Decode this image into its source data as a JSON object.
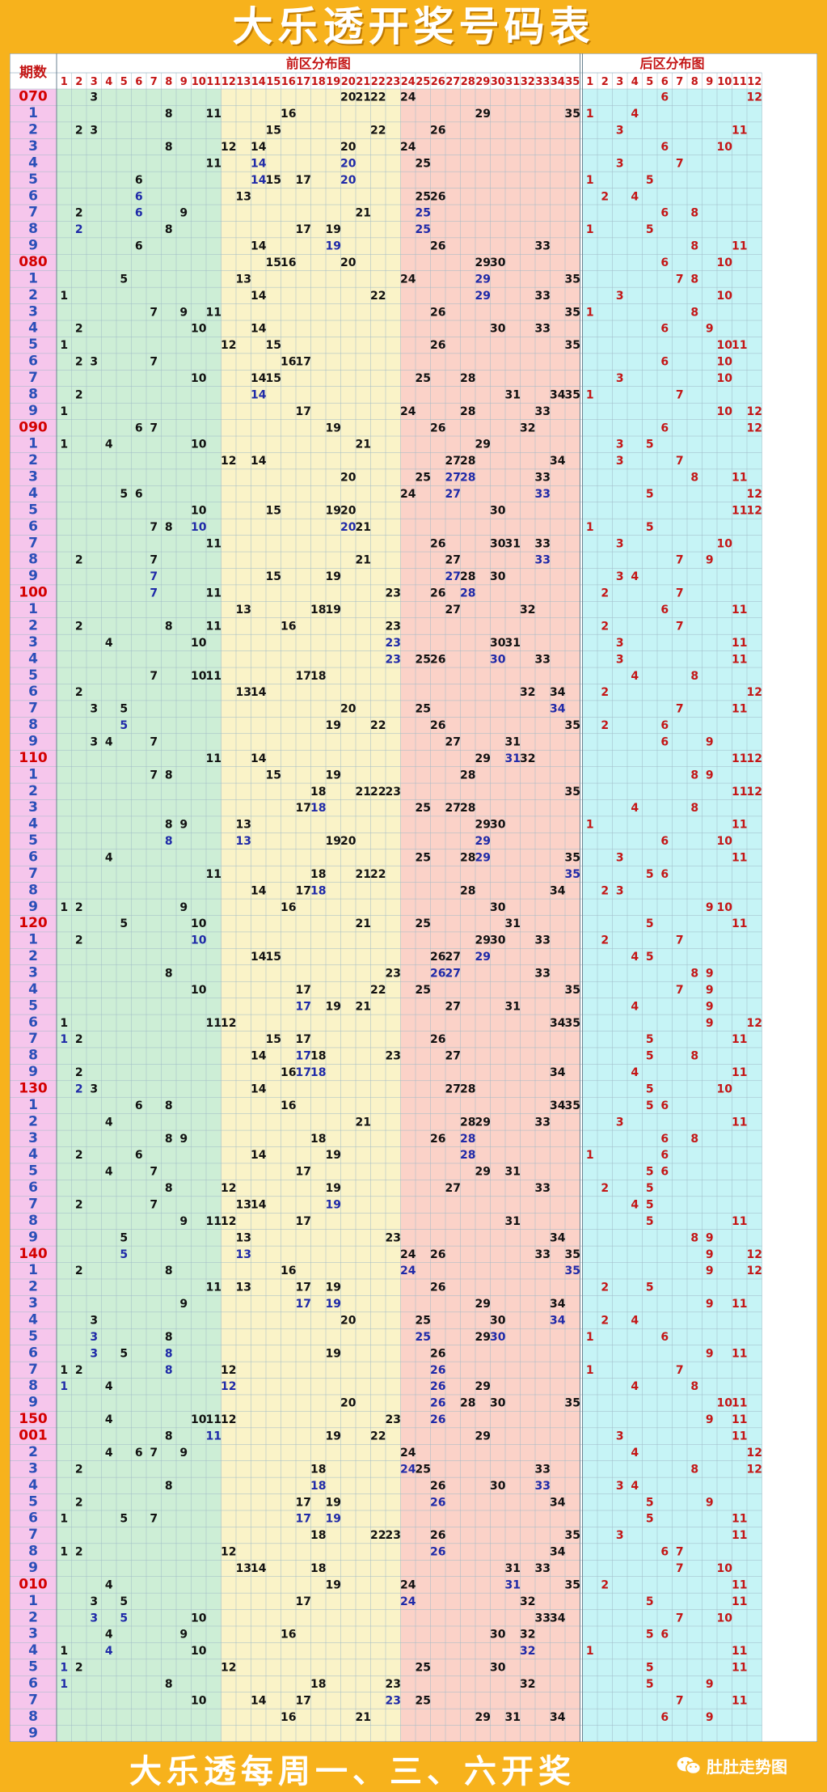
{
  "title": "大乐透开奖号码表",
  "footer": "大乐透每周一、三、六开奖",
  "watermark": "肚肚走势图",
  "chart_data": {
    "type": "table",
    "header": {
      "period": "期数",
      "front": "前区分布图",
      "back": "后区分布图"
    },
    "front_numbers": 35,
    "back_numbers": 12,
    "rows": [
      {
        "p": "070",
        "f": [
          3,
          20,
          21,
          22,
          24
        ],
        "b": [
          6,
          12
        ],
        "pc": "red"
      },
      {
        "p": "1",
        "f": [
          8,
          11,
          16,
          29,
          35
        ],
        "b": [
          1,
          4
        ]
      },
      {
        "p": "2",
        "f": [
          2,
          3,
          15,
          22,
          26
        ],
        "b": [
          3,
          11
        ]
      },
      {
        "p": "3",
        "f": [
          8,
          12,
          14,
          20,
          24
        ],
        "b": [
          6,
          10
        ]
      },
      {
        "p": "4",
        "f": [
          11,
          14,
          20,
          25
        ],
        "b": [
          3,
          7
        ]
      },
      {
        "p": "5",
        "f": [
          6,
          14,
          15,
          17,
          20
        ],
        "b": [
          1,
          5
        ]
      },
      {
        "p": "6",
        "f": [
          6,
          13,
          25,
          26
        ],
        "b": [
          2,
          4
        ]
      },
      {
        "p": "7",
        "f": [
          2,
          6,
          9,
          21,
          25
        ],
        "b": [
          6,
          8
        ]
      },
      {
        "p": "8",
        "f": [
          2,
          8,
          17,
          19,
          25
        ],
        "b": [
          1,
          5
        ]
      },
      {
        "p": "9",
        "f": [
          6,
          14,
          19,
          26,
          33
        ],
        "b": [
          8,
          11
        ]
      },
      {
        "p": "080",
        "f": [
          15,
          16,
          20,
          29,
          30
        ],
        "b": [
          6,
          10
        ],
        "pc": "red"
      },
      {
        "p": "1",
        "f": [
          5,
          13,
          24,
          29,
          35
        ],
        "b": [
          7,
          8
        ]
      },
      {
        "p": "2",
        "f": [
          1,
          14,
          22,
          29,
          33
        ],
        "b": [
          3,
          10
        ]
      },
      {
        "p": "3",
        "f": [
          7,
          9,
          11,
          26,
          35
        ],
        "b": [
          1,
          8
        ]
      },
      {
        "p": "4",
        "f": [
          2,
          10,
          14,
          30,
          33
        ],
        "b": [
          6,
          9
        ]
      },
      {
        "p": "5",
        "f": [
          1,
          12,
          15,
          26,
          35
        ],
        "b": [
          10,
          11
        ]
      },
      {
        "p": "6",
        "f": [
          2,
          3,
          7,
          16,
          17
        ],
        "b": [
          6,
          10
        ]
      },
      {
        "p": "7",
        "f": [
          10,
          14,
          15,
          25,
          28
        ],
        "b": [
          3,
          10
        ]
      },
      {
        "p": "8",
        "f": [
          2,
          14,
          31,
          34,
          35
        ],
        "b": [
          1,
          7
        ]
      },
      {
        "p": "9",
        "f": [
          1,
          17,
          24,
          28,
          33
        ],
        "b": [
          10,
          12
        ]
      },
      {
        "p": "090",
        "f": [
          6,
          7,
          19,
          26,
          32
        ],
        "b": [
          6,
          12
        ],
        "pc": "red"
      },
      {
        "p": "1",
        "f": [
          1,
          4,
          10,
          21,
          29
        ],
        "b": [
          3,
          5
        ]
      },
      {
        "p": "2",
        "f": [
          12,
          14,
          27,
          28,
          34
        ],
        "b": [
          3,
          7
        ]
      },
      {
        "p": "3",
        "f": [
          20,
          25,
          27,
          28,
          33
        ],
        "b": [
          8,
          11
        ]
      },
      {
        "p": "4",
        "f": [
          5,
          6,
          24,
          27,
          33
        ],
        "b": [
          5,
          12
        ]
      },
      {
        "p": "5",
        "f": [
          10,
          15,
          19,
          20,
          30
        ],
        "b": [
          11,
          12
        ]
      },
      {
        "p": "6",
        "f": [
          7,
          8,
          10,
          20,
          21
        ],
        "b": [
          1,
          5
        ]
      },
      {
        "p": "7",
        "f": [
          11,
          26,
          30,
          31,
          33
        ],
        "b": [
          3,
          10
        ]
      },
      {
        "p": "8",
        "f": [
          2,
          7,
          21,
          27,
          33
        ],
        "b": [
          7,
          9
        ]
      },
      {
        "p": "9",
        "f": [
          7,
          15,
          19,
          27,
          28,
          30
        ],
        "b": [
          3,
          4
        ]
      },
      {
        "p": "100",
        "f": [
          7,
          11,
          23,
          26,
          28
        ],
        "b": [
          2,
          7
        ],
        "pc": "red"
      },
      {
        "p": "1",
        "f": [
          13,
          18,
          19,
          27,
          32
        ],
        "b": [
          6,
          11
        ]
      },
      {
        "p": "2",
        "f": [
          2,
          8,
          11,
          16,
          23
        ],
        "b": [
          2,
          7
        ]
      },
      {
        "p": "3",
        "f": [
          4,
          10,
          23,
          30,
          31
        ],
        "b": [
          3,
          11
        ]
      },
      {
        "p": "4",
        "f": [
          23,
          25,
          26,
          30,
          33
        ],
        "b": [
          3,
          11
        ]
      },
      {
        "p": "5",
        "f": [
          7,
          10,
          11,
          17,
          18
        ],
        "b": [
          4,
          8
        ]
      },
      {
        "p": "6",
        "f": [
          2,
          13,
          14,
          32,
          34
        ],
        "b": [
          2,
          12
        ]
      },
      {
        "p": "7",
        "f": [
          3,
          5,
          20,
          25,
          34
        ],
        "b": [
          7,
          11
        ]
      },
      {
        "p": "8",
        "f": [
          5,
          19,
          22,
          26,
          35
        ],
        "b": [
          2,
          6
        ]
      },
      {
        "p": "9",
        "f": [
          3,
          4,
          7,
          27,
          31
        ],
        "b": [
          6,
          9
        ]
      },
      {
        "p": "110",
        "f": [
          11,
          14,
          29,
          31,
          32
        ],
        "b": [
          11,
          12
        ],
        "pc": "red"
      },
      {
        "p": "1",
        "f": [
          7,
          8,
          15,
          19,
          28
        ],
        "b": [
          8,
          9
        ]
      },
      {
        "p": "2",
        "f": [
          18,
          21,
          22,
          23,
          35
        ],
        "b": [
          11,
          12
        ]
      },
      {
        "p": "3",
        "f": [
          17,
          18,
          25,
          27,
          28
        ],
        "b": [
          4,
          8
        ]
      },
      {
        "p": "4",
        "f": [
          8,
          9,
          13,
          29,
          30
        ],
        "b": [
          1,
          11
        ]
      },
      {
        "p": "5",
        "f": [
          8,
          13,
          19,
          20,
          29
        ],
        "b": [
          6,
          10
        ]
      },
      {
        "p": "6",
        "f": [
          4,
          25,
          28,
          29,
          35
        ],
        "b": [
          3,
          11
        ]
      },
      {
        "p": "7",
        "f": [
          11,
          18,
          21,
          22,
          35
        ],
        "b": [
          5,
          6
        ]
      },
      {
        "p": "8",
        "f": [
          14,
          17,
          18,
          28,
          34
        ],
        "b": [
          2,
          3
        ]
      },
      {
        "p": "9",
        "f": [
          1,
          2,
          9,
          16,
          30
        ],
        "b": [
          9,
          10
        ]
      },
      {
        "p": "120",
        "f": [
          5,
          10,
          21,
          25,
          31
        ],
        "b": [
          5,
          11
        ],
        "pc": "red"
      },
      {
        "p": "1",
        "f": [
          2,
          10,
          29,
          30,
          33
        ],
        "b": [
          2,
          7
        ]
      },
      {
        "p": "2",
        "f": [
          14,
          15,
          26,
          27,
          29
        ],
        "b": [
          4,
          5
        ]
      },
      {
        "p": "3",
        "f": [
          8,
          23,
          26,
          27,
          33
        ],
        "b": [
          8,
          9
        ]
      },
      {
        "p": "4",
        "f": [
          10,
          17,
          22,
          25,
          35
        ],
        "b": [
          7,
          9
        ]
      },
      {
        "p": "5",
        "f": [
          17,
          19,
          21,
          27,
          31
        ],
        "b": [
          4,
          9
        ]
      },
      {
        "p": "6",
        "f": [
          1,
          11,
          12,
          34,
          35
        ],
        "b": [
          9,
          12
        ]
      },
      {
        "p": "7",
        "f": [
          1,
          2,
          15,
          17,
          26
        ],
        "b": [
          5,
          11
        ]
      },
      {
        "p": "8",
        "f": [
          14,
          17,
          18,
          23,
          27
        ],
        "b": [
          5,
          8
        ]
      },
      {
        "p": "9",
        "f": [
          2,
          16,
          17,
          18,
          34
        ],
        "b": [
          4,
          11
        ]
      },
      {
        "p": "130",
        "f": [
          2,
          3,
          14,
          27,
          28
        ],
        "b": [
          5,
          10
        ],
        "pc": "red"
      },
      {
        "p": "1",
        "f": [
          6,
          8,
          16,
          34,
          35
        ],
        "b": [
          5,
          6
        ]
      },
      {
        "p": "2",
        "f": [
          4,
          21,
          28,
          29,
          33
        ],
        "b": [
          3,
          11
        ]
      },
      {
        "p": "3",
        "f": [
          8,
          9,
          18,
          26,
          28
        ],
        "b": [
          6,
          8
        ]
      },
      {
        "p": "4",
        "f": [
          2,
          6,
          14,
          19,
          28
        ],
        "b": [
          1,
          6
        ]
      },
      {
        "p": "5",
        "f": [
          4,
          7,
          17,
          29,
          31
        ],
        "b": [
          5,
          6
        ]
      },
      {
        "p": "6",
        "f": [
          8,
          12,
          19,
          27,
          33
        ],
        "b": [
          2,
          5
        ]
      },
      {
        "p": "7",
        "f": [
          2,
          7,
          13,
          14,
          19
        ],
        "b": [
          4,
          5
        ]
      },
      {
        "p": "8",
        "f": [
          9,
          11,
          12,
          17,
          31
        ],
        "b": [
          5,
          11
        ]
      },
      {
        "p": "9",
        "f": [
          5,
          13,
          23,
          34
        ],
        "b": [
          8,
          9
        ]
      },
      {
        "p": "140",
        "f": [
          5,
          13,
          24,
          26,
          33,
          35
        ],
        "b": [
          9,
          12
        ],
        "pc": "red"
      },
      {
        "p": "1",
        "f": [
          2,
          8,
          16,
          24,
          35
        ],
        "b": [
          9,
          12
        ]
      },
      {
        "p": "2",
        "f": [
          11,
          13,
          17,
          19,
          26
        ],
        "b": [
          2,
          5
        ]
      },
      {
        "p": "3",
        "f": [
          9,
          17,
          19,
          29,
          34
        ],
        "b": [
          9,
          11
        ]
      },
      {
        "p": "4",
        "f": [
          3,
          20,
          25,
          30,
          34
        ],
        "b": [
          2,
          4
        ]
      },
      {
        "p": "5",
        "f": [
          3,
          8,
          25,
          29,
          30
        ],
        "b": [
          1,
          6
        ]
      },
      {
        "p": "6",
        "f": [
          3,
          5,
          8,
          19,
          26
        ],
        "b": [
          9,
          11
        ]
      },
      {
        "p": "7",
        "f": [
          1,
          2,
          8,
          12,
          26
        ],
        "b": [
          1,
          7
        ]
      },
      {
        "p": "8",
        "f": [
          1,
          4,
          12,
          26,
          29
        ],
        "b": [
          4,
          8
        ]
      },
      {
        "p": "9",
        "f": [
          20,
          26,
          28,
          30,
          35
        ],
        "b": [
          10,
          11
        ]
      },
      {
        "p": "150",
        "f": [
          4,
          10,
          11,
          12,
          23,
          26
        ],
        "b": [
          9,
          11
        ],
        "pc": "red"
      },
      {
        "p": "001",
        "f": [
          8,
          11,
          19,
          22,
          29
        ],
        "b": [
          3,
          11
        ],
        "pc": "red"
      },
      {
        "p": "2",
        "f": [
          4,
          6,
          7,
          9,
          24
        ],
        "b": [
          4,
          12
        ]
      },
      {
        "p": "3",
        "f": [
          2,
          18,
          24,
          25,
          33
        ],
        "b": [
          8,
          12
        ]
      },
      {
        "p": "4",
        "f": [
          8,
          18,
          26,
          30,
          33
        ],
        "b": [
          3,
          4
        ]
      },
      {
        "p": "5",
        "f": [
          2,
          17,
          19,
          26,
          34
        ],
        "b": [
          5,
          9
        ]
      },
      {
        "p": "6",
        "f": [
          1,
          5,
          7,
          17,
          19
        ],
        "b": [
          5,
          11
        ]
      },
      {
        "p": "7",
        "f": [
          18,
          22,
          23,
          26,
          35
        ],
        "b": [
          3,
          11
        ]
      },
      {
        "p": "8",
        "f": [
          1,
          2,
          12,
          26,
          34
        ],
        "b": [
          6,
          7
        ]
      },
      {
        "p": "9",
        "f": [
          13,
          14,
          18,
          31,
          33
        ],
        "b": [
          7,
          10
        ]
      },
      {
        "p": "010",
        "f": [
          4,
          19,
          24,
          31,
          35
        ],
        "b": [
          2,
          11
        ],
        "pc": "red"
      },
      {
        "p": "1",
        "f": [
          3,
          5,
          17,
          24,
          32
        ],
        "b": [
          5,
          11
        ]
      },
      {
        "p": "2",
        "f": [
          3,
          5,
          10,
          33,
          34
        ],
        "b": [
          7,
          10
        ]
      },
      {
        "p": "3",
        "f": [
          4,
          9,
          16,
          30,
          32
        ],
        "b": [
          5,
          6
        ]
      },
      {
        "p": "4",
        "f": [
          1,
          4,
          10,
          32
        ],
        "b": [
          1,
          11
        ]
      },
      {
        "p": "5",
        "f": [
          1,
          2,
          12,
          25,
          30
        ],
        "b": [
          5,
          11
        ]
      },
      {
        "p": "6",
        "f": [
          1,
          8,
          18,
          23,
          32
        ],
        "b": [
          5,
          9
        ]
      },
      {
        "p": "7",
        "f": [
          10,
          14,
          17,
          23,
          25
        ],
        "b": [
          7,
          11
        ]
      },
      {
        "p": "8",
        "f": [
          16,
          21,
          29,
          31,
          34
        ],
        "b": [
          6,
          9
        ]
      },
      {
        "p": "9",
        "f": [],
        "b": []
      }
    ]
  }
}
